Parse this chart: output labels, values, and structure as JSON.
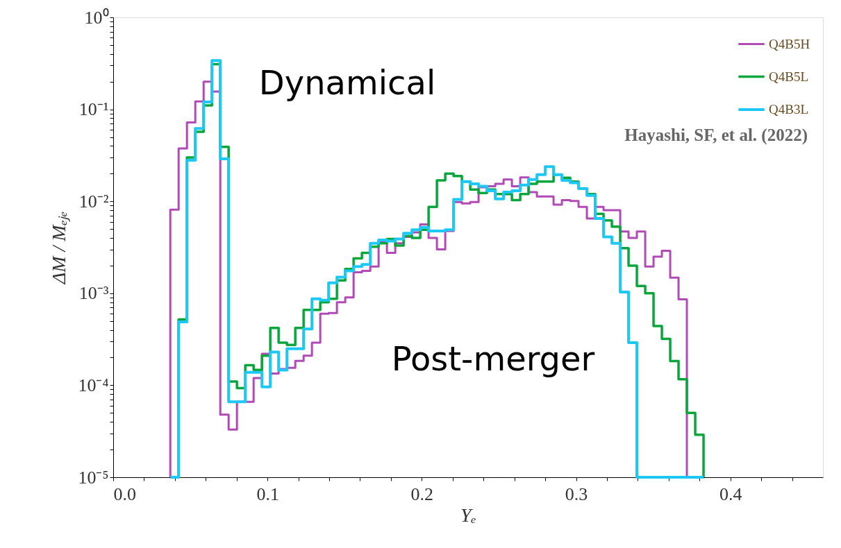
{
  "chart_data": {
    "type": "histogram",
    "bins": [
      0.037,
      0.0424,
      0.0478,
      0.0532,
      0.0586,
      0.064,
      0.0694,
      0.0748,
      0.0802,
      0.0856,
      0.091,
      0.0964,
      0.1018,
      0.1072,
      0.1126,
      0.118,
      0.1234,
      0.1288,
      0.1342,
      0.1396,
      0.145,
      0.1504,
      0.1558,
      0.1612,
      0.1666,
      0.172,
      0.1774,
      0.1828,
      0.1882,
      0.1936,
      0.199,
      0.2044,
      0.2098,
      0.2152,
      0.2206,
      0.226,
      0.2314,
      0.2368,
      0.2422,
      0.2476,
      0.253,
      0.2584,
      0.2638,
      0.2692,
      0.2746,
      0.28,
      0.2854,
      0.2908,
      0.2962,
      0.3016,
      0.307,
      0.3124,
      0.3178,
      0.3232,
      0.3286,
      0.334,
      0.3394,
      0.3448,
      0.3502,
      0.3556,
      0.361,
      0.3664,
      0.3718,
      0.3772,
      0.3826
    ],
    "series": [
      {
        "name": "Q4B5H",
        "color": "#b04ab4",
        "values": [
          0.0081,
          0.0376,
          0.072,
          0.122,
          0.2,
          0.156,
          4.8e-05,
          3.3e-05,
          6.6e-05,
          6.6e-05,
          0.00012,
          0.00022,
          0.000134,
          0.00015,
          0.000155,
          0.000184,
          0.00021,
          0.00029,
          0.0006,
          0.00061,
          0.0008,
          0.0009,
          0.00169,
          0.00175,
          0.00195,
          0.0037,
          0.00275,
          0.0035,
          0.0041,
          0.0046,
          0.0056,
          0.004,
          0.003,
          0.00475,
          0.0098,
          0.0095,
          0.0098,
          0.0142,
          0.0146,
          0.0155,
          0.0173,
          0.0146,
          0.0182,
          0.0126,
          0.0113,
          0.0113,
          0.0092,
          0.0103,
          0.0101,
          0.0087,
          0.0065,
          0.0087,
          0.008,
          0.008,
          0.0047,
          0.004,
          0.0047,
          0.00195,
          0.0025,
          0.0029,
          0.00148,
          0.00086,
          null,
          null
        ]
      },
      {
        "name": "Q4B5L",
        "color": "#0aa63c",
        "values": [
          null,
          0.00052,
          0.03,
          0.057,
          0.11,
          0.31,
          0.039,
          0.00011,
          9.3e-05,
          0.000165,
          0.000147,
          0.00021,
          0.00042,
          0.00029,
          0.000275,
          0.00042,
          0.00066,
          0.00066,
          0.0008,
          0.00087,
          0.00138,
          0.00184,
          0.0024,
          0.00275,
          0.0032,
          0.0035,
          0.0039,
          0.0033,
          0.0042,
          0.004,
          0.0049,
          0.0087,
          0.0169,
          0.02,
          0.0188,
          0.0164,
          0.0134,
          0.0123,
          0.0134,
          0.012,
          0.012,
          0.0103,
          0.012,
          0.0155,
          0.0164,
          0.0164,
          0.0195,
          0.018,
          0.0164,
          0.0138,
          0.012,
          0.0073,
          0.0062,
          0.0053,
          0.0031,
          0.002,
          0.0012,
          0.001,
          0.00044,
          0.00032,
          0.000183,
          0.000116,
          5e-05,
          2.9e-05
        ]
      },
      {
        "name": "Q4B3L",
        "color": "#1ec8f5",
        "values": [
          null,
          0.00049,
          0.028,
          0.062,
          0.12,
          0.34,
          0.029,
          6.6e-05,
          6.6e-05,
          0.000138,
          0.000138,
          9.6e-05,
          0.00023,
          0.000146,
          0.00025,
          0.00025,
          0.00041,
          0.00087,
          0.00084,
          0.0013,
          0.0015,
          0.00175,
          0.00195,
          0.00206,
          0.0035,
          0.0038,
          0.0037,
          0.0039,
          0.0045,
          0.0049,
          0.0052,
          0.00475,
          0.00475,
          0.0049,
          0.0105,
          0.0164,
          0.0155,
          0.0146,
          0.013,
          0.0106,
          0.0126,
          0.013,
          0.015,
          0.0173,
          0.0195,
          0.0238,
          0.0195,
          0.0169,
          0.0159,
          0.0138,
          0.0116,
          0.0065,
          0.0041,
          0.0035,
          0.00103,
          0.00029,
          null,
          null,
          null,
          null,
          null,
          null,
          null,
          null
        ]
      }
    ],
    "xlabel": "Yₑ",
    "ylabel": "ΔM / Mₑⱼₑ",
    "xlim": [
      0,
      0.46
    ],
    "xticks": [
      {
        "value": 0,
        "label": "0.0"
      },
      {
        "value": 0.02,
        "label": null
      },
      {
        "value": 0.04,
        "label": null
      },
      {
        "value": 0.06,
        "label": null
      },
      {
        "value": 0.08,
        "label": null
      },
      0.1,
      {
        "value": 0.12,
        "label": null
      },
      {
        "value": 0.14,
        "label": null
      },
      {
        "value": 0.16,
        "label": null
      },
      {
        "value": 0.18,
        "label": null
      },
      0.2,
      {
        "value": 0.22,
        "label": null
      },
      {
        "value": 0.24,
        "label": null
      },
      {
        "value": 0.26,
        "label": null
      },
      {
        "value": 0.28,
        "label": null
      },
      0.3,
      {
        "value": 0.32,
        "label": null
      },
      {
        "value": 0.34,
        "label": null
      },
      {
        "value": 0.36,
        "label": null
      },
      {
        "value": 0.38,
        "label": null
      },
      0.4,
      {
        "value": 0.42,
        "label": null
      },
      {
        "value": 0.44,
        "label": null
      }
    ],
    "ylim": [
      1e-05,
      1
    ],
    "yticks": [
      {
        "value": 1e-05,
        "label": "10⁻⁵"
      },
      {
        "value": 2e-05,
        "label": null
      },
      {
        "value": 3e-05,
        "label": null
      },
      {
        "value": 4e-05,
        "label": null
      },
      {
        "value": 5e-05,
        "label": null
      },
      {
        "value": 6e-05,
        "label": null
      },
      {
        "value": 7e-05,
        "label": null
      },
      {
        "value": 8e-05,
        "label": null
      },
      {
        "value": 9e-05,
        "label": null
      },
      {
        "value": 0.0001,
        "label": "10⁻⁴"
      },
      {
        "value": 0.0002,
        "label": null
      },
      {
        "value": 0.0003,
        "label": null
      },
      {
        "value": 0.0004,
        "label": null
      },
      {
        "value": 0.0005,
        "label": null
      },
      {
        "value": 0.0006,
        "label": null
      },
      {
        "value": 0.0007,
        "label": null
      },
      {
        "value": 0.0008,
        "label": null
      },
      {
        "value": 0.0009,
        "label": null
      },
      {
        "value": 0.001,
        "label": "10⁻³"
      },
      {
        "value": 0.002,
        "label": null
      },
      {
        "value": 0.003,
        "label": null
      },
      {
        "value": 0.004,
        "label": null
      },
      {
        "value": 0.005,
        "label": null
      },
      {
        "value": 0.006,
        "label": null
      },
      {
        "value": 0.007,
        "label": null
      },
      {
        "value": 0.008,
        "label": null
      },
      {
        "value": 0.009,
        "label": null
      },
      {
        "value": 0.01,
        "label": "10⁻²"
      },
      {
        "value": 0.02,
        "label": null
      },
      {
        "value": 0.03,
        "label": null
      },
      {
        "value": 0.04,
        "label": null
      },
      {
        "value": 0.05,
        "label": null
      },
      {
        "value": 0.06,
        "label": null
      },
      {
        "value": 0.07,
        "label": null
      },
      {
        "value": 0.08,
        "label": null
      },
      {
        "value": 0.09,
        "label": null
      },
      {
        "value": 0.1,
        "label": "10⁻¹"
      },
      {
        "value": 0.2,
        "label": null
      },
      {
        "value": 0.3,
        "label": null
      },
      {
        "value": 0.4,
        "label": null
      },
      {
        "value": 0.5,
        "label": null
      },
      {
        "value": 0.6,
        "label": null
      },
      {
        "value": 0.7,
        "label": null
      },
      {
        "value": 0.8,
        "label": null
      },
      {
        "value": 0.9,
        "label": null
      },
      {
        "value": 1,
        "label": "10⁰"
      }
    ],
    "log": true,
    "legend": "top right",
    "annotations": [
      "Dynamical",
      "Post-merger",
      "Hayashi, SF, et al. (2022)"
    ]
  }
}
